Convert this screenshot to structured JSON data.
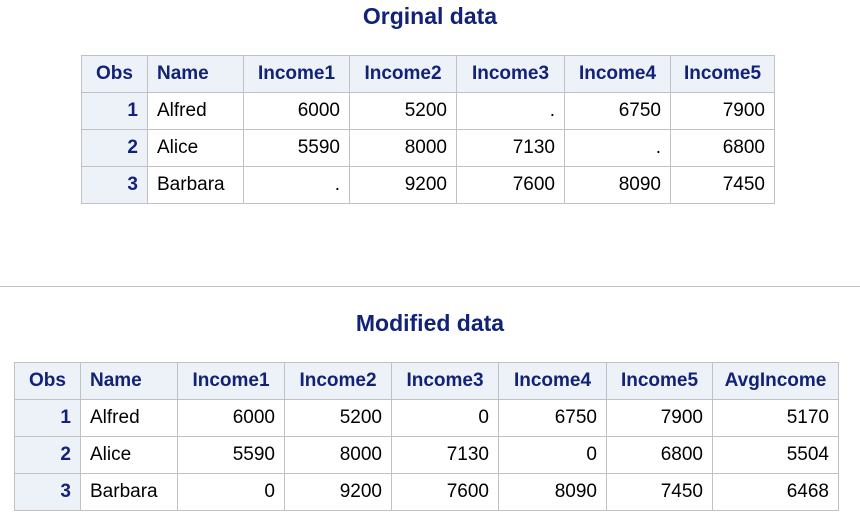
{
  "original": {
    "title": "Orginal data",
    "columns": [
      "Obs",
      "Name",
      "Income1",
      "Income2",
      "Income3",
      "Income4",
      "Income5"
    ],
    "rows": [
      [
        "1",
        "Alfred",
        "6000",
        "5200",
        ".",
        "6750",
        "7900"
      ],
      [
        "2",
        "Alice",
        "5590",
        "8000",
        "7130",
        ".",
        "6800"
      ],
      [
        "3",
        "Barbara",
        ".",
        "9200",
        "7600",
        "8090",
        "7450"
      ]
    ]
  },
  "modified": {
    "title": "Modified data",
    "columns": [
      "Obs",
      "Name",
      "Income1",
      "Income2",
      "Income3",
      "Income4",
      "Income5",
      "AvgIncome"
    ],
    "rows": [
      [
        "1",
        "Alfred",
        "6000",
        "5200",
        "0",
        "6750",
        "7900",
        "5170"
      ],
      [
        "2",
        "Alice",
        "5590",
        "8000",
        "7130",
        "0",
        "6800",
        "5504"
      ],
      [
        "3",
        "Barbara",
        "0",
        "9200",
        "7600",
        "8090",
        "7450",
        "6468"
      ]
    ]
  },
  "colors": {
    "header_text": "#112277",
    "header_bg": "#edf2f9",
    "border": "#c1c1c1"
  }
}
